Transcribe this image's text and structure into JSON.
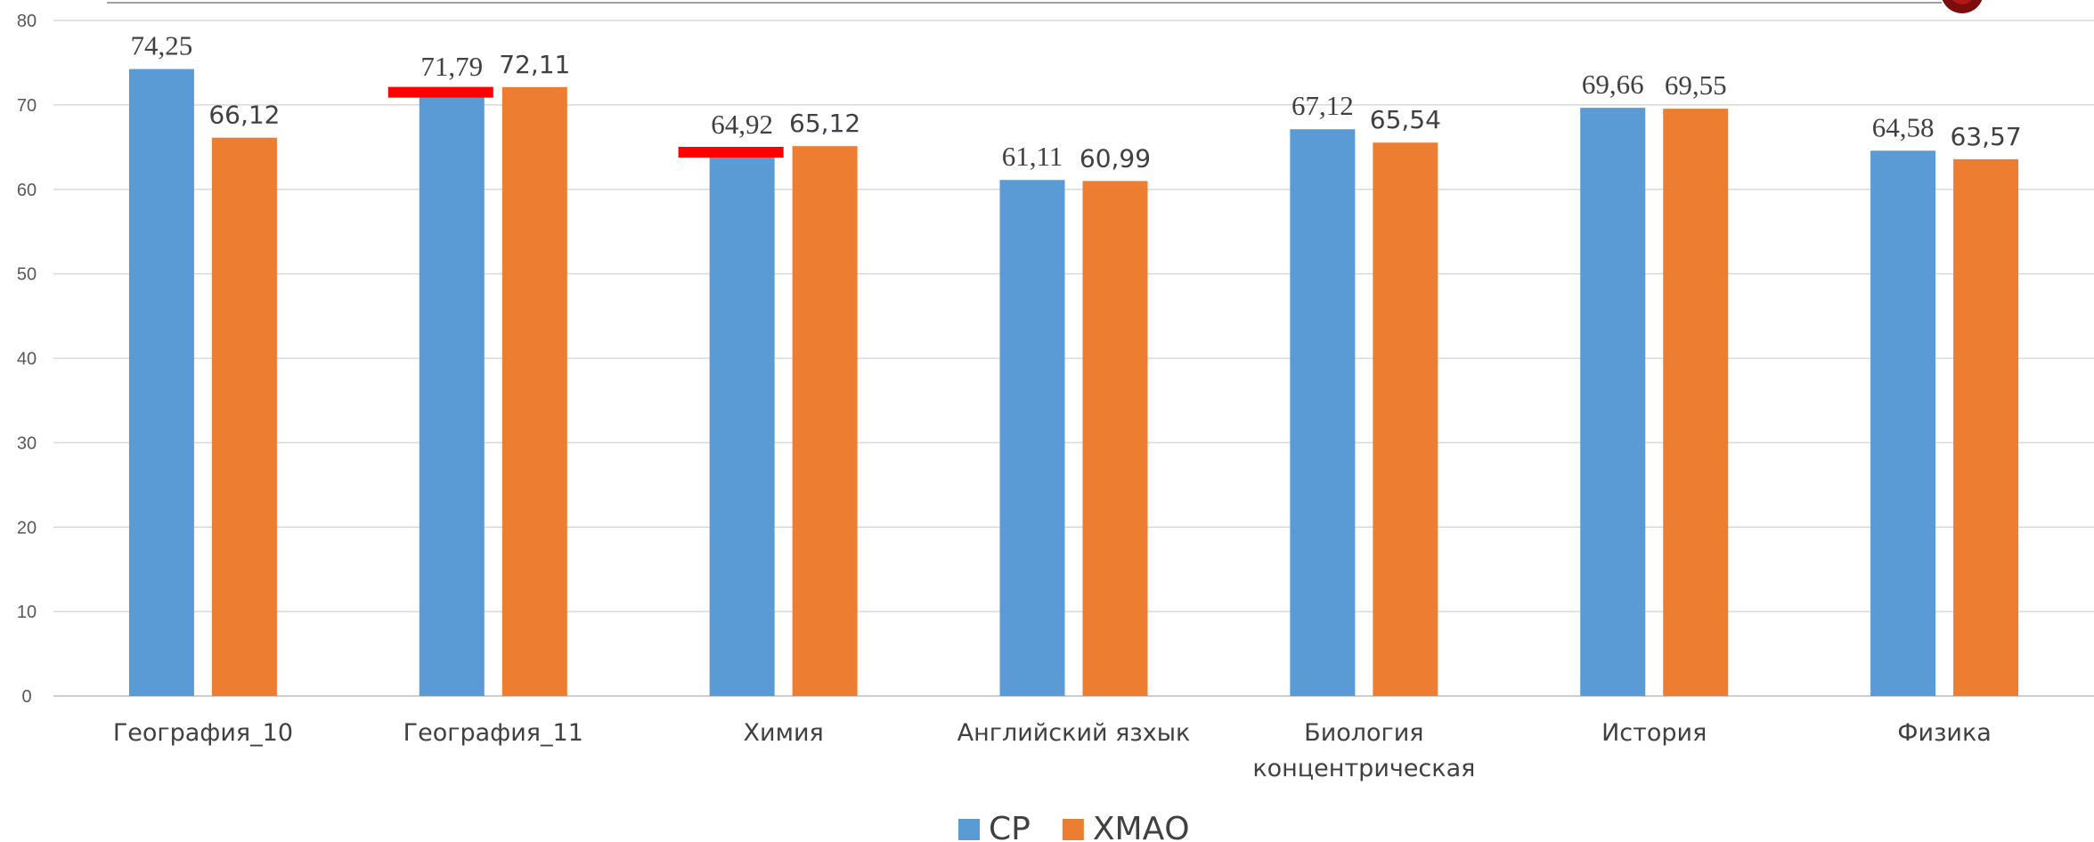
{
  "chart_data": {
    "type": "bar",
    "categories": [
      [
        "География_10"
      ],
      [
        "География_11"
      ],
      [
        "Химия"
      ],
      [
        "Английский язхык"
      ],
      [
        "Биология",
        "концентрическая"
      ],
      [
        "История"
      ],
      [
        "Физика"
      ]
    ],
    "series": [
      {
        "name": "СР",
        "color": "#5B9BD5",
        "values": [
          74.25,
          71.79,
          64.92,
          61.11,
          67.12,
          69.66,
          64.58
        ],
        "labels": [
          "74,25",
          "71,79",
          "64,92",
          "61,11",
          "67,12",
          "69,66",
          "64,58"
        ]
      },
      {
        "name": "ХМАО",
        "color": "#ED7D31",
        "values": [
          66.12,
          72.11,
          65.12,
          60.99,
          65.54,
          69.55,
          63.57
        ],
        "labels": [
          "66,12",
          "72,11",
          "65,12",
          "60,99",
          "65,54",
          "69,55",
          "63,57"
        ]
      }
    ],
    "ylim": [
      0,
      80
    ],
    "yticks": [
      0,
      10,
      20,
      30,
      40,
      50,
      60,
      70,
      80
    ],
    "grid": true,
    "legend_position": "bottom",
    "red_markers": [
      {
        "category_index": 1,
        "value": 71.5
      },
      {
        "category_index": 2,
        "value": 64.4
      }
    ],
    "marker_color": "#FF0000"
  }
}
